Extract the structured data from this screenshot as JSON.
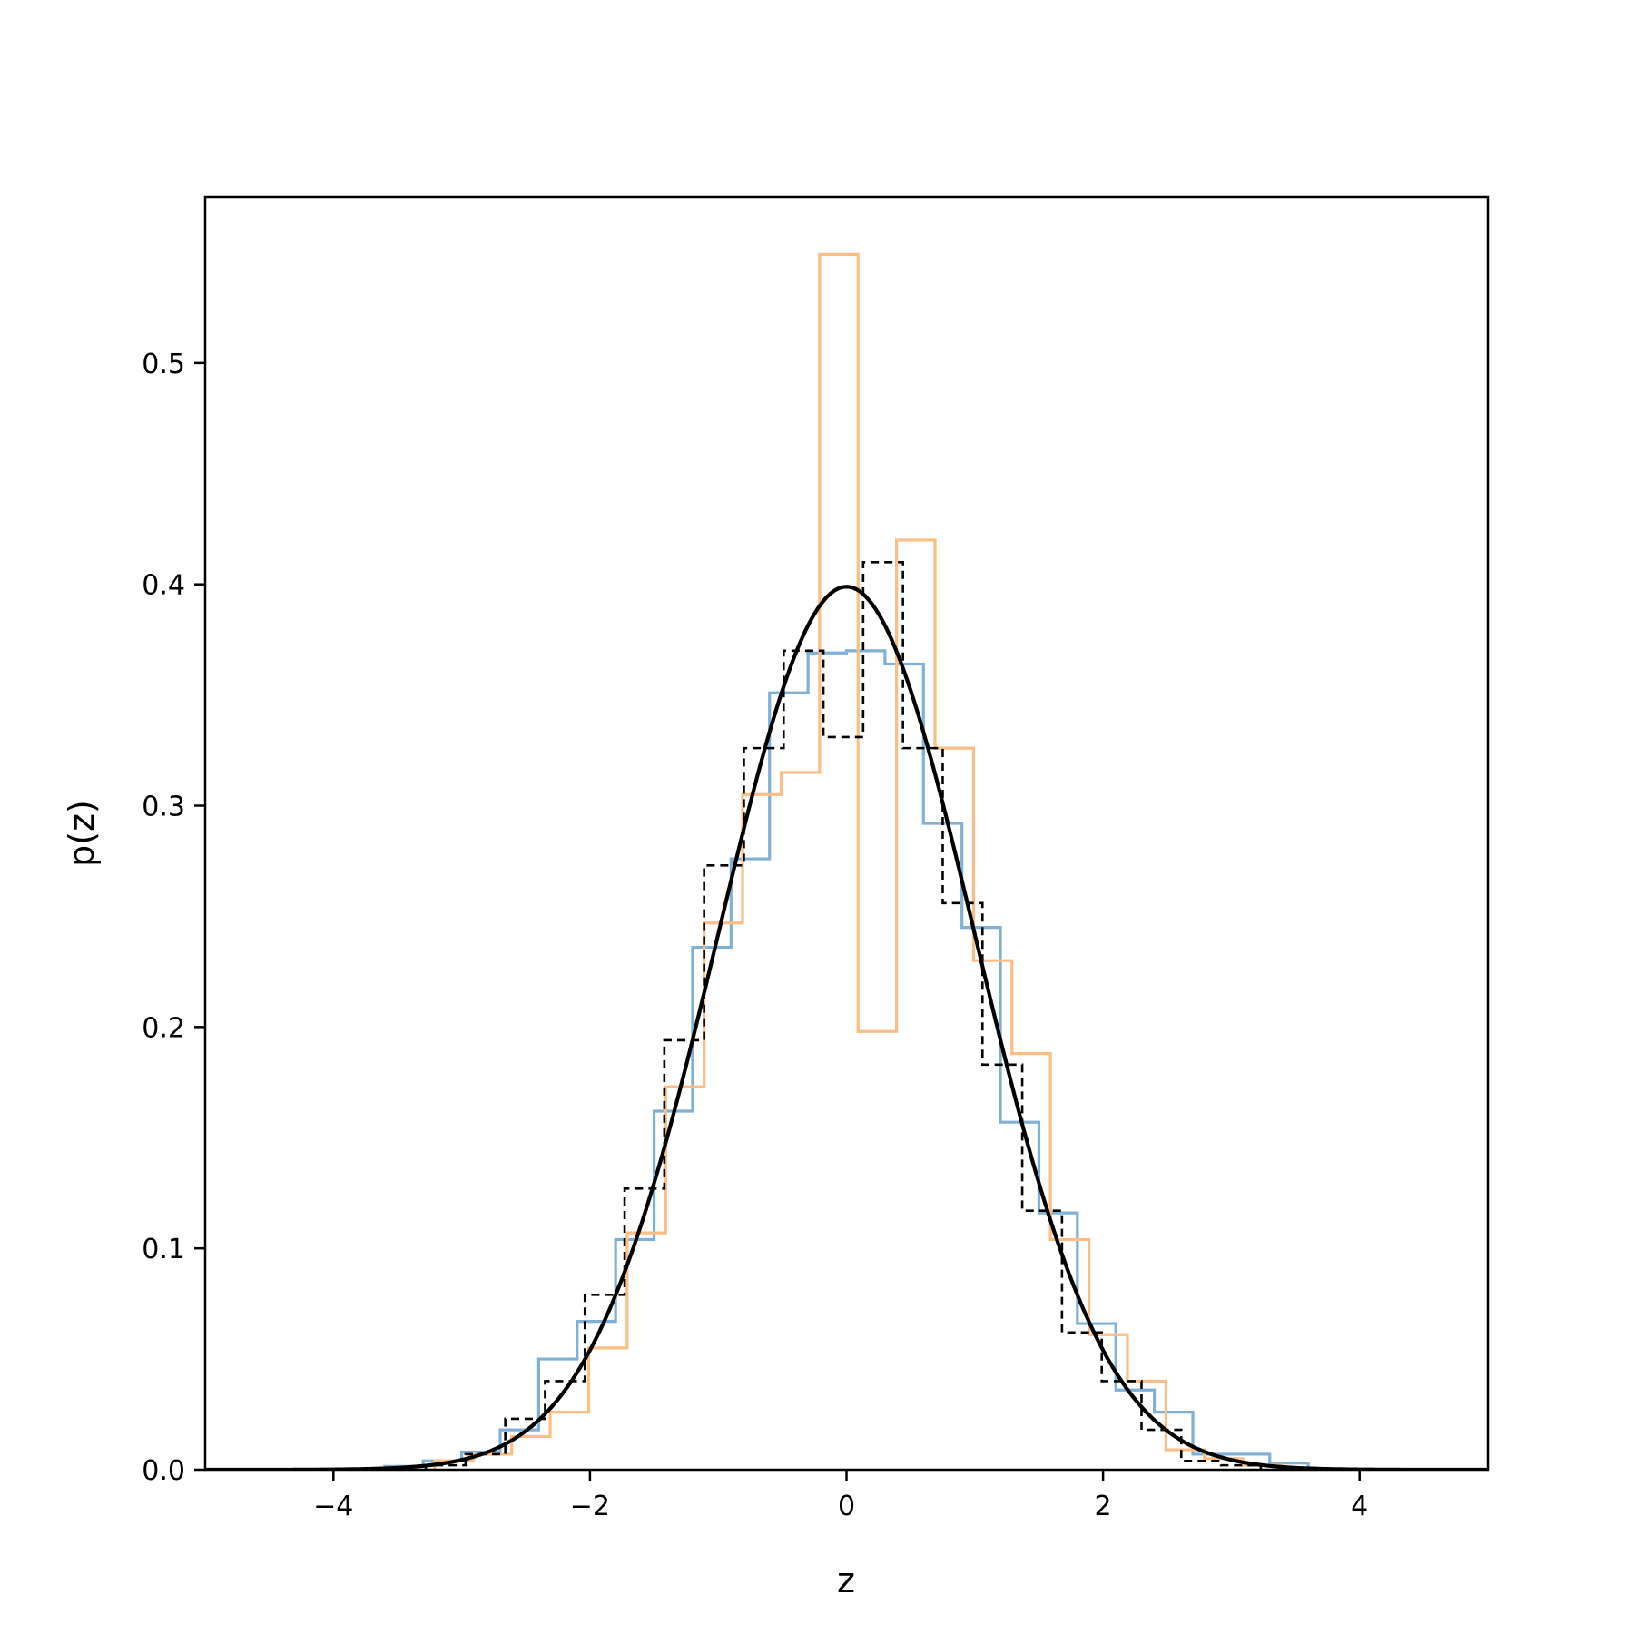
{
  "chart_data": {
    "type": "line",
    "title": "",
    "xlabel": "z",
    "ylabel": "p(z)",
    "xlim": [
      -5,
      5
    ],
    "ylim": [
      0,
      0.575
    ],
    "xticks": [
      -4,
      -2,
      0,
      2,
      4
    ],
    "xtick_labels": [
      "−4",
      "−2",
      "0",
      "2",
      "4"
    ],
    "yticks": [
      0.0,
      0.1,
      0.2,
      0.3,
      0.4,
      0.5
    ],
    "ytick_labels": [
      "0.0",
      "0.1",
      "0.2",
      "0.3",
      "0.4",
      "0.5"
    ],
    "grid": false,
    "legend": "none",
    "series": [
      {
        "kind": "step-histogram",
        "color": "#7fb0d6",
        "edges": [
          -3.6,
          -3.3,
          -3.0,
          -2.7,
          -2.4,
          -2.1,
          -1.8,
          -1.5,
          -1.2,
          -0.9,
          -0.6,
          -0.3,
          0.0,
          0.3,
          0.6,
          0.9,
          1.2,
          1.5,
          1.8,
          2.1,
          2.4,
          2.7,
          3.0,
          3.3,
          3.6
        ],
        "values": [
          0.0015,
          0.004,
          0.008,
          0.018,
          0.05,
          0.067,
          0.104,
          0.162,
          0.236,
          0.276,
          0.351,
          0.369,
          0.37,
          0.364,
          0.292,
          0.245,
          0.157,
          0.116,
          0.066,
          0.036,
          0.026,
          0.007,
          0.007,
          0.003
        ]
      },
      {
        "kind": "step-histogram",
        "color": "#fdbe85",
        "edges": [
          -3.21,
          -2.91,
          -2.61,
          -2.31,
          -2.01,
          -1.71,
          -1.41,
          -1.11,
          -0.81,
          -0.51,
          -0.21,
          0.09,
          0.39,
          0.69,
          0.99,
          1.29,
          1.59,
          1.89,
          2.19,
          2.49,
          2.79,
          3.09,
          3.39
        ],
        "values": [
          0.004,
          0.007,
          0.015,
          0.026,
          0.055,
          0.107,
          0.173,
          0.247,
          0.305,
          0.315,
          0.549,
          0.198,
          0.42,
          0.326,
          0.23,
          0.188,
          0.104,
          0.061,
          0.04,
          0.009,
          0.005,
          0.002
        ]
      },
      {
        "kind": "step-histogram",
        "color": "#000000",
        "dashed": true,
        "edges": [
          -3.28,
          -2.97,
          -2.66,
          -2.35,
          -2.04,
          -1.73,
          -1.42,
          -1.11,
          -0.8,
          -0.49,
          -0.18,
          0.13,
          0.44,
          0.75,
          1.06,
          1.37,
          1.68,
          1.99,
          2.3,
          2.61,
          2.92,
          3.23
        ],
        "values": [
          0.002,
          0.007,
          0.023,
          0.04,
          0.079,
          0.127,
          0.194,
          0.273,
          0.326,
          0.37,
          0.331,
          0.41,
          0.326,
          0.256,
          0.183,
          0.117,
          0.062,
          0.04,
          0.018,
          0.004,
          0.002
        ]
      },
      {
        "kind": "pdf-curve",
        "color": "#000000",
        "mean": 0,
        "std": 1,
        "x_range": [
          -5,
          5
        ]
      }
    ]
  }
}
